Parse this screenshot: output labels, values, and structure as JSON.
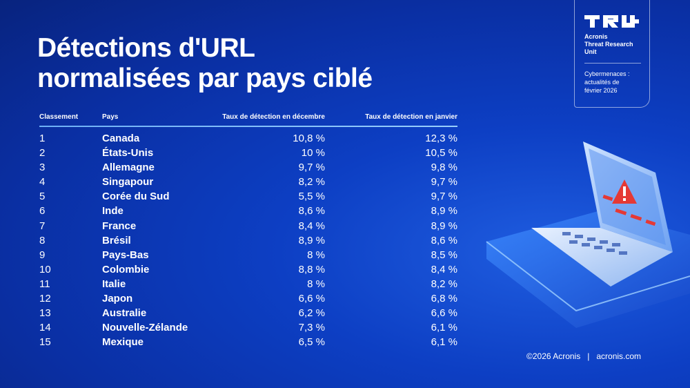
{
  "title": {
    "line1": "Détections d'URL",
    "line2": "normalisées par pays ciblé"
  },
  "brand": {
    "logo_icon": "tru-logo-icon",
    "name_lines": [
      "Acronis",
      "Threat Research",
      "Unit"
    ],
    "subtitle_lines": [
      "Cybermenaces :",
      "actualités de",
      "février 2026"
    ]
  },
  "table": {
    "headers": {
      "rank": "Classement",
      "country": "Pays",
      "december": "Taux de détection en décembre",
      "january": "Taux de détection en janvier"
    },
    "rows": [
      {
        "rank": "1",
        "country": "Canada",
        "december": "10,8 %",
        "january": "12,3 %"
      },
      {
        "rank": "2",
        "country": "États-Unis",
        "december": "10 %",
        "january": "10,5 %"
      },
      {
        "rank": "3",
        "country": "Allemagne",
        "december": "9,7 %",
        "january": "9,8 %"
      },
      {
        "rank": "4",
        "country": "Singapour",
        "december": "8,2 %",
        "january": "9,7 %"
      },
      {
        "rank": "5",
        "country": "Corée du Sud",
        "december": "5,5 %",
        "january": "9,7 %"
      },
      {
        "rank": "6",
        "country": "Inde",
        "december": "8,6 %",
        "january": "8,9 %"
      },
      {
        "rank": "7",
        "country": "France",
        "december": "8,4 %",
        "january": "8,9 %"
      },
      {
        "rank": "8",
        "country": "Brésil",
        "december": "8,9 %",
        "january": "8,6 %"
      },
      {
        "rank": "9",
        "country": "Pays-Bas",
        "december": "8 %",
        "january": "8,5 %"
      },
      {
        "rank": "10",
        "country": "Colombie",
        "december": "8,8 %",
        "january": "8,4 %"
      },
      {
        "rank": "11",
        "country": "Italie",
        "december": "8 %",
        "january": "8,2 %"
      },
      {
        "rank": "12",
        "country": "Japon",
        "december": "6,6 %",
        "january": "6,8 %"
      },
      {
        "rank": "13",
        "country": "Australie",
        "december": "6,2 %",
        "january": "6,6 %"
      },
      {
        "rank": "14",
        "country": "Nouvelle-Zélande",
        "december": "7,3 %",
        "january": "6,1 %"
      },
      {
        "rank": "15",
        "country": "Mexique",
        "december": "6,5 %",
        "january": "6,1 %"
      }
    ]
  },
  "illustration": {
    "icon": "laptop-warning-icon"
  },
  "footer": {
    "copyright": "©2026 Acronis",
    "separator": "|",
    "website": "acronis.com"
  },
  "colors": {
    "background": "#0d3fc4",
    "accent_rule": "#8cc8ff",
    "warning": "#e53935"
  }
}
